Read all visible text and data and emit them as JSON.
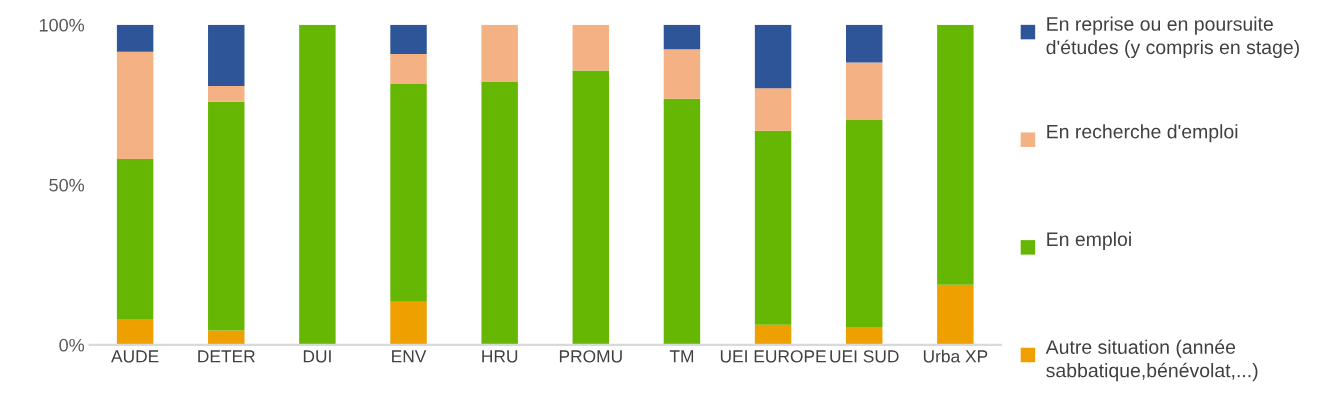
{
  "chart_data": {
    "type": "bar",
    "stacked": true,
    "categories": [
      "AUDE",
      "DETER",
      "DUI",
      "ENV",
      "HRU",
      "PROMU",
      "TM",
      "UEI EUROPE",
      "UEI SUD",
      "Urba XP"
    ],
    "series": [
      {
        "name": "Autre situation (année sabbatique,bénévolat,...)",
        "color": "#eda000",
        "values": [
          8.1,
          4.5,
          0,
          13.5,
          0,
          0,
          0,
          6.3,
          5.6,
          18.8
        ]
      },
      {
        "name": "En emploi",
        "color": "#66b703",
        "values": [
          50.0,
          71.5,
          100,
          68.2,
          82.3,
          85.7,
          76.9,
          60.6,
          64.8,
          81.2
        ]
      },
      {
        "name": "En recherche d'emploi",
        "color": "#f4b183",
        "values": [
          33.5,
          4.9,
          0,
          9.2,
          17.7,
          14.3,
          15.5,
          13.3,
          17.8,
          0
        ]
      },
      {
        "name": "En reprise ou en poursuite d'études (y compris en stage)",
        "color": "#2e5597",
        "values": [
          8.4,
          19.1,
          0,
          9.1,
          0,
          0,
          7.6,
          19.8,
          11.8,
          0
        ]
      }
    ],
    "ylim": [
      0,
      100
    ],
    "yticks": [
      {
        "value": 0,
        "label": "0%"
      },
      {
        "value": 50,
        "label": "50%"
      },
      {
        "value": 100,
        "label": "100%"
      }
    ],
    "grid": false,
    "legend": "right"
  }
}
